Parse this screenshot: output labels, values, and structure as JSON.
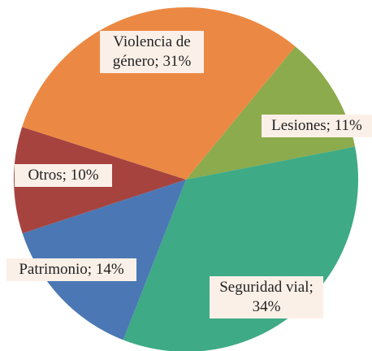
{
  "chart_data": {
    "type": "pie",
    "values": [
      11,
      34,
      14,
      10,
      31
    ],
    "value_labels": [
      "Lesiones; 11%",
      "Seguridad vial; 34%",
      "Patrimonio; 14%",
      "Otros; 10%",
      "Violencia de género; 31%"
    ],
    "colors": [
      "#8cab4c",
      "#3eaa86",
      "#4b78b4",
      "#a6433f",
      "#eb8944"
    ]
  }
}
